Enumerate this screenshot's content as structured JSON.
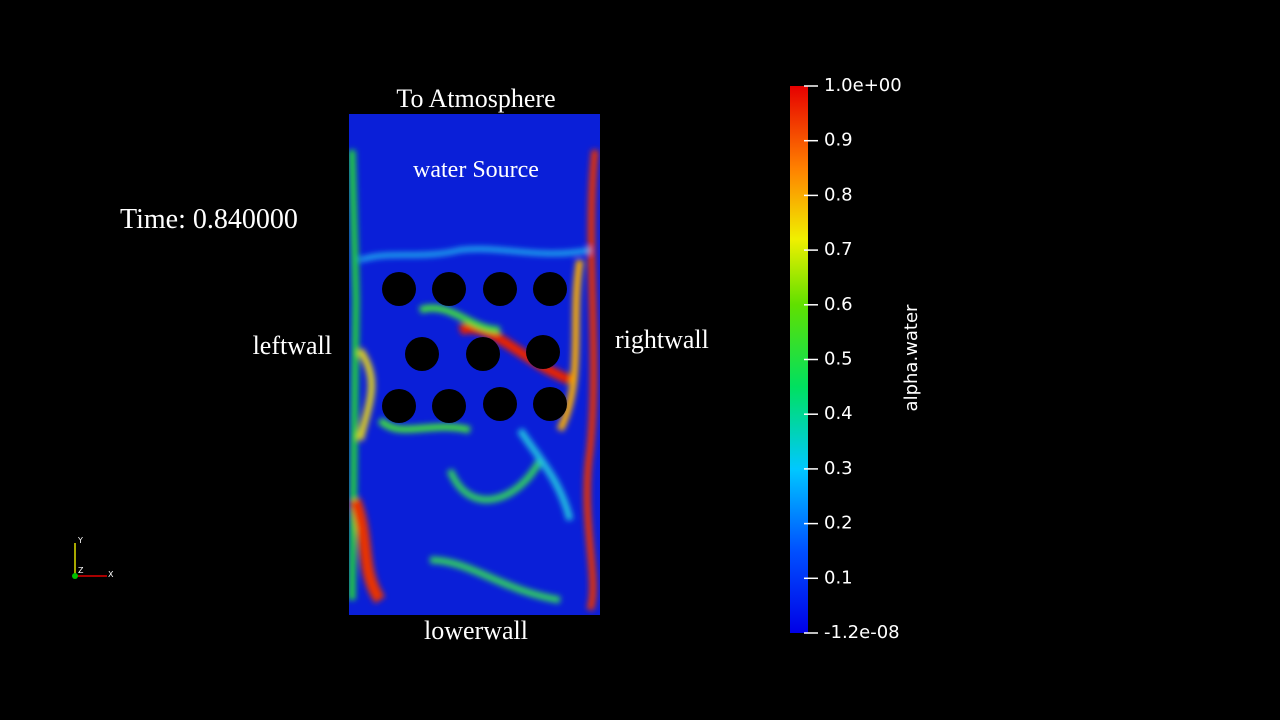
{
  "labels": {
    "top": "To Atmosphere",
    "source": "water Source",
    "left": "leftwall",
    "right": "rightwall",
    "bottom": "lowerwall",
    "time": "Time: 0.840000"
  },
  "axes": {
    "y": "Y",
    "z": "Z",
    "x": "X"
  },
  "colorbar": {
    "title": "alpha.water",
    "range": [
      -1.2e-08,
      1
    ],
    "ticks": [
      {
        "value": 1,
        "label": "1.0e+00"
      },
      0.9,
      0.8,
      0.7,
      0.6,
      0.5,
      0.4,
      0.3,
      0.2,
      0.1,
      {
        "value": -1.2e-08,
        "label": "-1.2e-08"
      }
    ]
  }
}
